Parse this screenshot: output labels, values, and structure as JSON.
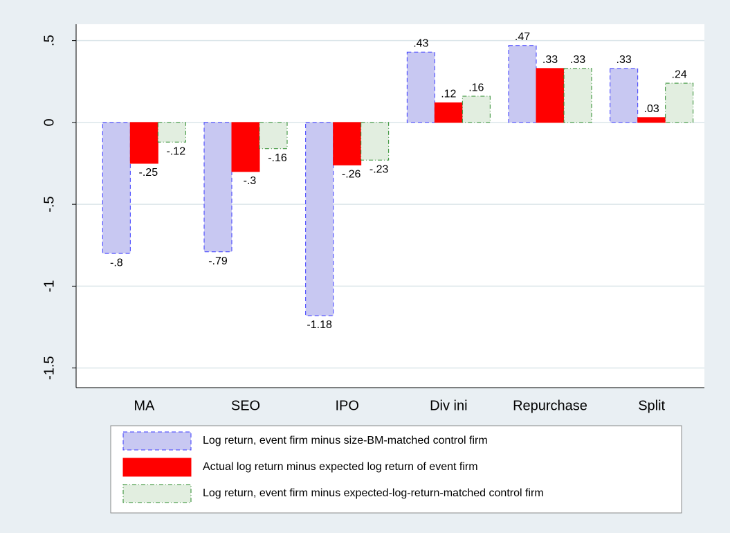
{
  "chart_data": {
    "type": "bar",
    "categories": [
      "MA",
      "SEO",
      "IPO",
      "Div ini",
      "Repurchase",
      "Split"
    ],
    "series": [
      {
        "name": "Log return, event firm minus size-BM-matched control firm",
        "color": "#c8c8f2",
        "values": [
          -0.8,
          -0.79,
          -1.18,
          0.43,
          0.47,
          0.33
        ],
        "value_labels": [
          "-.8",
          "-.79",
          "-1.18",
          ".43",
          ".47",
          ".33"
        ]
      },
      {
        "name": "Actual log return minus expected log return of event firm",
        "color": "#ff0000",
        "values": [
          -0.25,
          -0.3,
          -0.26,
          0.12,
          0.33,
          0.03
        ],
        "value_labels": [
          "-.25",
          "-.3",
          "-.26",
          ".12",
          ".33",
          ".03"
        ]
      },
      {
        "name": "Log return, event firm minus expected-log-return-matched control firm",
        "color": "#e2eee0",
        "values": [
          -0.12,
          -0.16,
          -0.23,
          0.16,
          0.33,
          0.24
        ],
        "value_labels": [
          "-.12",
          "-.16",
          "-.23",
          ".16",
          ".33",
          ".24"
        ]
      }
    ],
    "ylim": [
      -1.62,
      0.6
    ],
    "yticks": [
      {
        "value": -1.5,
        "label": "-1.5"
      },
      -1,
      {
        "value": -0.5,
        "label": "-.5"
      },
      0,
      {
        "value": 0.5,
        "label": ".5"
      }
    ],
    "grid": true
  }
}
